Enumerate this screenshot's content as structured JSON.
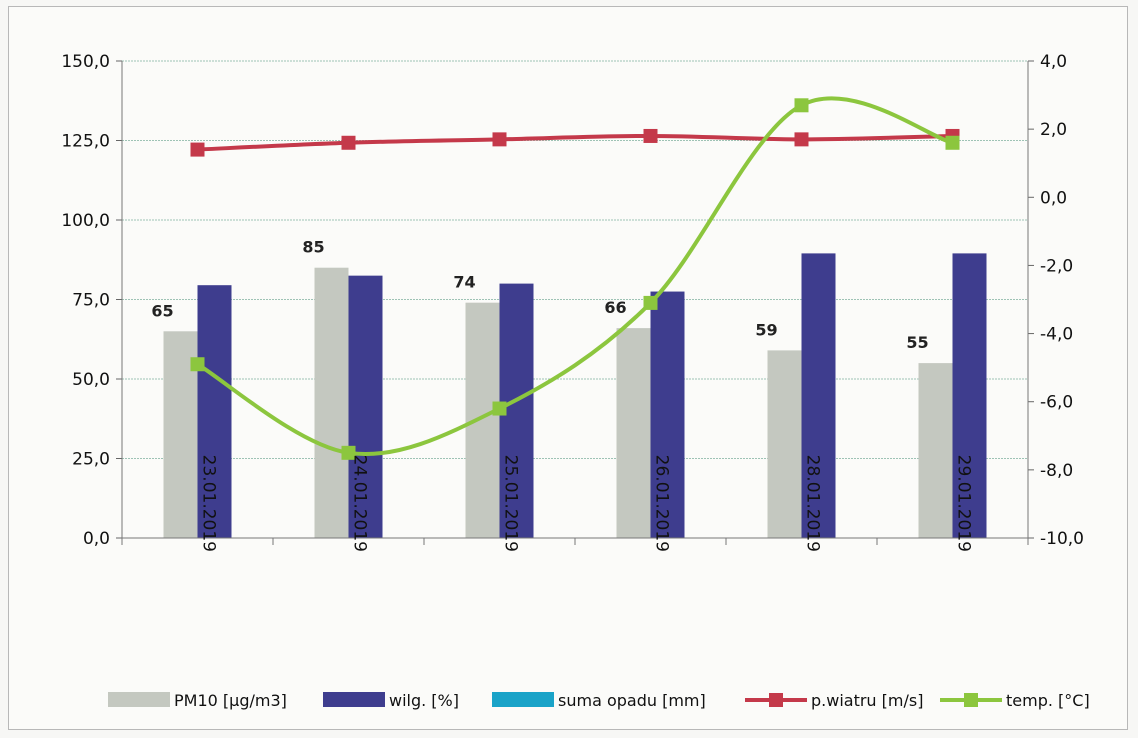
{
  "chart_data": {
    "type": "bar",
    "categories": [
      "23.01.2019",
      "24.01.2019",
      "25.01.2019",
      "26.01.2019",
      "28.01.2019",
      "29.01.2019"
    ],
    "y_left": {
      "range": [
        0,
        150
      ],
      "ticks": [
        "0,0",
        "25,0",
        "50,0",
        "75,0",
        "100,0",
        "125,0",
        "150,0"
      ]
    },
    "y_right": {
      "range": [
        -10,
        4
      ],
      "ticks": [
        "-10,0",
        "-8,0",
        "-6,0",
        "-4,0",
        "-2,0",
        "0,0",
        "2,0",
        "4,0"
      ]
    },
    "series": [
      {
        "name": "PM10  [µg/m3]",
        "type": "bar",
        "axis": "left",
        "color": "#c4c8c0",
        "values": [
          65,
          85,
          74,
          66,
          59,
          55
        ],
        "labels": [
          "65",
          "85",
          "74",
          "66",
          "59",
          "55"
        ]
      },
      {
        "name": "wilg. [%]",
        "type": "bar",
        "axis": "left",
        "color": "#3e3d8e",
        "values": [
          79.5,
          82.5,
          80,
          77.5,
          89.5,
          89.5
        ]
      },
      {
        "name": "suma  opadu [mm]",
        "type": "bar",
        "axis": "left",
        "color": "#1aa3c8",
        "values": [
          0,
          0,
          0,
          0,
          0,
          0
        ]
      },
      {
        "name": "p.wiatru [m/s]",
        "type": "line",
        "axis": "right",
        "color": "#c4394a",
        "values": [
          1.4,
          1.6,
          1.7,
          1.8,
          1.7,
          1.8
        ]
      },
      {
        "name": "temp. [°C]",
        "type": "line",
        "axis": "right",
        "color": "#8cc63e",
        "values": [
          -4.9,
          -7.5,
          -6.2,
          -3.1,
          2.7,
          1.6
        ]
      }
    ],
    "grid": true,
    "legend": "bottom"
  }
}
